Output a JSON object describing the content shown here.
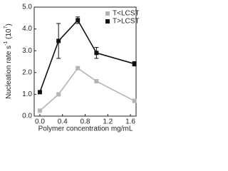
{
  "chart_data": {
    "type": "line",
    "xlabel": "Polymer concentration mg/mL",
    "ylabel": [
      "Nucleation rate s",
      "-1",
      " (10",
      "7",
      ")"
    ],
    "x": [
      0,
      0.33,
      0.67,
      1.0,
      1.67
    ],
    "series": [
      {
        "name": "T<LCST",
        "color": "#b4b4b4",
        "marker": "square",
        "values": [
          0.25,
          1.0,
          2.2,
          1.6,
          0.7
        ]
      },
      {
        "name": "T>LCST",
        "color": "#111111",
        "marker": "square",
        "values": [
          1.1,
          3.45,
          4.4,
          2.9,
          2.4
        ],
        "errors": [
          null,
          0.8,
          0.15,
          0.25,
          0.1
        ]
      }
    ],
    "xlim": [
      -0.1,
      1.7
    ],
    "xticks": [
      {
        "value": 0,
        "label": "0.0"
      },
      0.4,
      0.8,
      1.2,
      1.6
    ],
    "ylim": [
      0,
      5
    ],
    "yticks": [
      {
        "value": 0,
        "label": "0.0"
      },
      {
        "value": 1,
        "label": "1.0"
      },
      {
        "value": 2,
        "label": "2.0"
      },
      {
        "value": 3,
        "label": "3.0"
      },
      {
        "value": 4,
        "label": "4.0"
      },
      {
        "value": 5,
        "label": "5.0"
      }
    ],
    "legend": "upper right",
    "grid": false
  }
}
